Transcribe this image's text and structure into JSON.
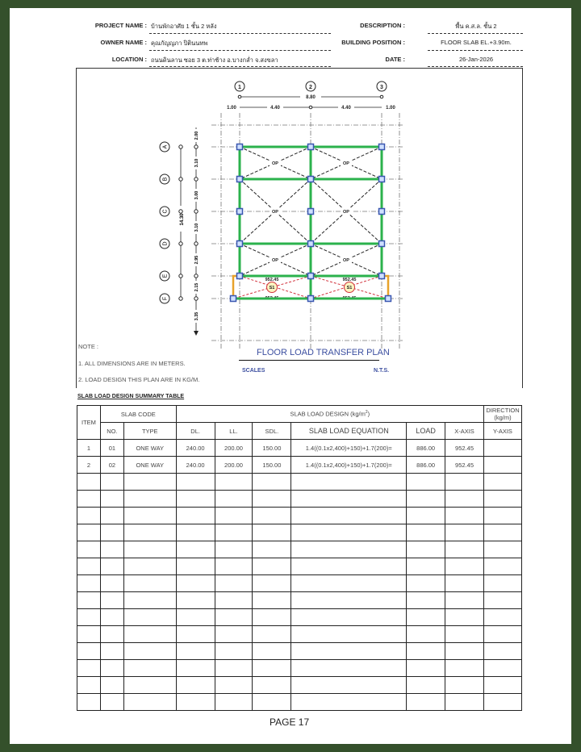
{
  "header": {
    "project_label": "PROJECT NAME :",
    "project_value": "บ้านพักอาศัย 1 ชั้น 2 หลัง",
    "owner_label": "OWNER NAME :",
    "owner_value": "คุณกัญญภา ปิตินนทพ",
    "location_label": "LOCATION :",
    "location_value": "ถนนดินลาน ซอย 3 ต.ท่าช้าง อ.บางกล่ำ จ.สงขลา",
    "description_label": "DESCRIPTION :",
    "description_value": "พื้น ค.ส.ล. ชั้น 2",
    "position_label": "BUILDING POSITION :",
    "position_value": "FLOOR SLAB EL.+3.90m.",
    "date_label": "DATE :",
    "date_value": "26-Jan-2026"
  },
  "plan": {
    "title": "FLOOR LOAD TRANSFER PLAN",
    "scales_label": "SCALES",
    "scales_value": "N.T.S.",
    "col_grids": [
      "1",
      "2",
      "3"
    ],
    "row_grids": [
      "A",
      "B",
      "C",
      "D",
      "E",
      "F"
    ],
    "top_total": "8.80",
    "top_dims": [
      "1.00",
      "4.40",
      "4.40",
      "1.00"
    ],
    "left_total": "14.30",
    "left_dims": [
      "2.00",
      "3.10",
      "3.00",
      "3.10",
      "2.95",
      "2.15",
      "3.35"
    ],
    "opening_label": "OP",
    "slab_label": "S1",
    "load_value": "952.45",
    "colors": {
      "beam": "#2bb24c",
      "column": "#3a57b0",
      "cantilever": "#e8a22a",
      "slab_lines": "#d2323c",
      "title": "#3c4fa0"
    }
  },
  "notes": {
    "title": "NOTE :",
    "items": [
      "1. ALL DIMENSIONS ARE IN METERS.",
      "2. LOAD DESIGN  THIS PLAN ARE IN KG/M."
    ]
  },
  "table": {
    "title": "SLAB LOAD DESIGN SUMMARY TABLE",
    "h_item": "ITEM",
    "h_code": "SLAB CODE",
    "h_design": "SLAB LOAD DESIGN (kg/m",
    "h_design_sup": "2",
    "h_design_end": ")",
    "h_direction": "DIRECTION (kg/m)",
    "cols": [
      "NO.",
      "TYPE",
      "DL.",
      "LL.",
      "SDL.",
      "SLAB LOAD EQUATION",
      "LOAD",
      "X-AXIS",
      "Y-AXIS"
    ],
    "rows": [
      [
        "1",
        "01",
        "ONE WAY",
        "240.00",
        "200.00",
        "150.00",
        "1.4((0.1x2,400)+150)+1.7(200)=",
        "886.00",
        "952.45",
        ""
      ],
      [
        "2",
        "02",
        "ONE WAY",
        "240.00",
        "200.00",
        "150.00",
        "1.4((0.1x2,400)+150)+1.7(200)=",
        "886.00",
        "952.45",
        ""
      ]
    ]
  },
  "footer": {
    "page": "PAGE 17"
  }
}
